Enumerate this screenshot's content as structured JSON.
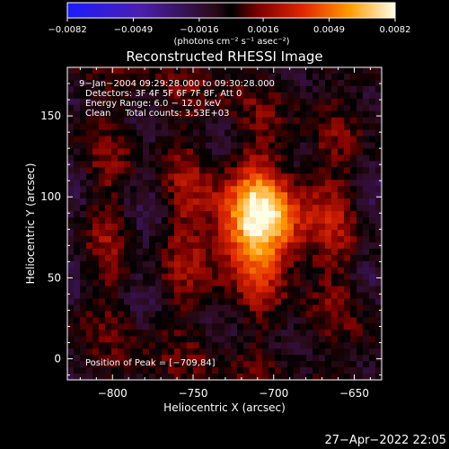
{
  "chart_data": {
    "type": "heatmap",
    "title": "Reconstructed RHESSI Image",
    "xlabel": "Heliocentric X (arcsec)",
    "ylabel": "Heliocentric Y (arcsec)",
    "xlim": [
      -828,
      -633
    ],
    "ylim": [
      -13,
      180
    ],
    "xticks": [
      -800,
      -750,
      -700,
      -650
    ],
    "yticks": [
      0,
      50,
      100,
      150
    ],
    "xtick_labels": [
      "−800",
      "−750",
      "−700",
      "−650"
    ],
    "ytick_labels": [
      "0",
      "50",
      "100",
      "150"
    ],
    "peak": {
      "x": -709,
      "y": 84
    },
    "colorbar": {
      "min": -0.0082,
      "max": 0.0082,
      "ticks": [
        -0.0082,
        -0.0049,
        -0.0016,
        0.0016,
        0.0049,
        0.0082
      ],
      "tick_labels": [
        "−0.0082",
        "−0.0049",
        "−0.0016",
        "0.0016",
        "0.0049",
        "0.0082"
      ],
      "unit_label": "(photons cm⁻² s⁻¹ asec⁻²)"
    },
    "annotations": [
      "9−Jan−2004 09:29:28.000 to 09:30:28.000",
      "Detectors: 3F 4F 5F 6F 7F 8F, Att 0",
      "Energy Range: 6.0 − 12.0 keV",
      "Clean     Total counts: 3.53E+03"
    ],
    "peak_label": "Position of Peak = [−709,84]",
    "colors": {
      "background": "#000000",
      "axes": "#ffffff"
    }
  },
  "footer": {
    "timestamp": "27−Apr−2022 22:05"
  }
}
